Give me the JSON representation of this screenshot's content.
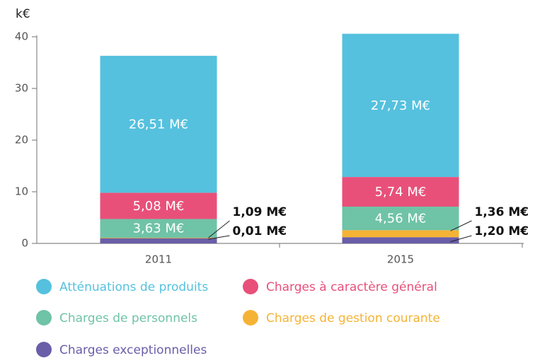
{
  "chart_data": {
    "type": "bar",
    "stacked": true,
    "y_label": "k€",
    "categories": [
      "2011",
      "2015"
    ],
    "series": [
      {
        "name": "Atténuations de produits",
        "color": "#55c1de",
        "values": [
          26.51,
          27.73
        ],
        "value_labels": [
          "26,51 M€",
          "27,73 M€"
        ]
      },
      {
        "name": "Charges à caractère général",
        "color": "#e8507a",
        "values": [
          5.08,
          5.74
        ],
        "value_labels": [
          "5,08 M€",
          "5,74 M€"
        ]
      },
      {
        "name": "Charges de personnels",
        "color": "#6fc3a6",
        "values": [
          3.63,
          4.56
        ],
        "value_labels": [
          "3,63 M€",
          "4,56 M€"
        ]
      },
      {
        "name": "Charges de gestion courante",
        "color": "#f5b335",
        "values": [
          0.01,
          1.36
        ],
        "value_labels": [
          "0,01 M€",
          "1,36 M€"
        ]
      },
      {
        "name": "Charges exceptionnelles",
        "color": "#6a5ea8",
        "values": [
          1.09,
          1.2
        ],
        "value_labels": [
          "1,09 M€",
          "1,20 M€"
        ]
      }
    ],
    "ylim": [
      0,
      40
    ],
    "yticks": [
      0,
      10,
      20,
      30,
      40
    ]
  }
}
